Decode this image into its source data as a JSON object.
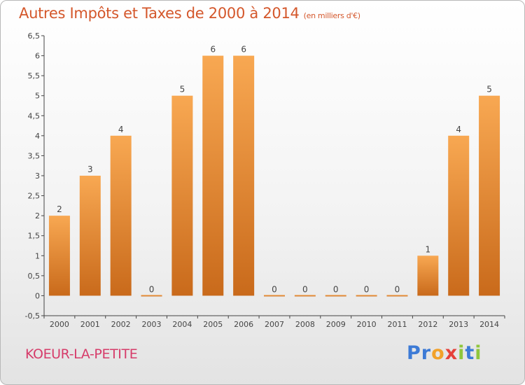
{
  "colors": {
    "bar_top": "#f8a852",
    "bar_bottom": "#c96a1b",
    "title": "#d4572b",
    "commune": "#d63c6a"
  },
  "commune": "KOEUR-LA-PETITE",
  "logo": {
    "letters": [
      "P",
      "r",
      "o",
      "x",
      "i",
      "t",
      "i"
    ],
    "letter_colors": [
      "#3d7bd6",
      "#3d7bd6",
      "#f2a12a",
      "#e5413a",
      "#8fc63c",
      "#3d7bd6",
      "#8fc63c"
    ]
  },
  "chart_data": {
    "type": "bar",
    "title": "Autres Impôts et Taxes de 2000 à 2014",
    "subtitle": "(en milliers d'€)",
    "xlabel": "",
    "ylabel": "",
    "categories": [
      "2000",
      "2001",
      "2002",
      "2003",
      "2004",
      "2005",
      "2006",
      "2007",
      "2008",
      "2009",
      "2010",
      "2011",
      "2012",
      "2013",
      "2014"
    ],
    "values": [
      2,
      3,
      4,
      0,
      5,
      6,
      6,
      0,
      0,
      0,
      0,
      0,
      1,
      4,
      5
    ],
    "data_labels": [
      "2",
      "3",
      "4",
      "0",
      "5",
      "6",
      "6",
      "0",
      "0",
      "0",
      "0",
      "0",
      "1",
      "4",
      "5"
    ],
    "ylim": [
      -0.5,
      6.5
    ],
    "yticks": [
      -0.5,
      0,
      0.5,
      1,
      1.5,
      2,
      2.5,
      3,
      3.5,
      4,
      4.5,
      5,
      5.5,
      6,
      6.5
    ],
    "ytick_labels": [
      "-0,5",
      "0",
      "0,5",
      "1",
      "1,5",
      "2",
      "2,5",
      "3",
      "3,5",
      "4",
      "4,5",
      "5",
      "5,5",
      "6",
      "6,5"
    ],
    "grid": false,
    "legend": "none"
  }
}
